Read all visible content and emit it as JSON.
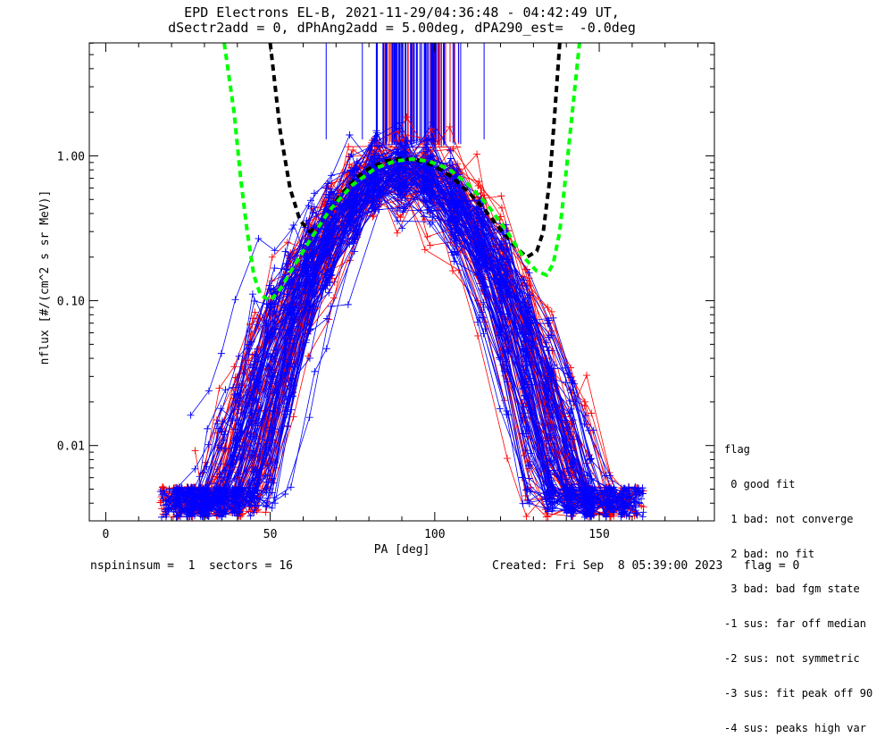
{
  "chart_data": {
    "type": "line",
    "title_line1": "EPD Electrons EL-B, 2021-11-29/04:36:48 - 04:42:49 UT,",
    "title_line2": "dSectr2add = 0, dPhAng2add = 5.00deg, dPA290_est=  -0.0deg",
    "xlabel": "PA [deg]",
    "ylabel": "nflux [#/(cm^2 s sr MeV)]",
    "xlim": [
      -5,
      185
    ],
    "ylim_log10": [
      -2.52,
      0.78
    ],
    "y_scale": "log",
    "x_ticks": [
      0,
      50,
      100,
      150
    ],
    "y_ticks": [
      {
        "value": 0.01,
        "label": "0.01"
      },
      {
        "value": 0.1,
        "label": "0.10"
      },
      {
        "value": 1.0,
        "label": "1.00"
      }
    ],
    "series_colors": {
      "red": "#ff0000",
      "blue": "#0000ff",
      "fit_black": "#000000",
      "fit_green": "#00ff00"
    },
    "fit_green": {
      "x": [
        36,
        39,
        41,
        43,
        45,
        47,
        50,
        53,
        57,
        62,
        68,
        75,
        82,
        88,
        93,
        98,
        104,
        110,
        116,
        122,
        127,
        131,
        134,
        136,
        138,
        140,
        142,
        144
      ],
      "y": [
        6.0,
        2.0,
        0.7,
        0.3,
        0.15,
        0.11,
        0.1,
        0.12,
        0.17,
        0.26,
        0.42,
        0.63,
        0.82,
        0.92,
        0.95,
        0.92,
        0.82,
        0.64,
        0.46,
        0.3,
        0.2,
        0.16,
        0.15,
        0.18,
        0.3,
        0.8,
        2.2,
        6.0
      ]
    },
    "fit_black": {
      "x": [
        50,
        53,
        56,
        59,
        62,
        65,
        68,
        72,
        76,
        80,
        85,
        90,
        95,
        100,
        105,
        110,
        115,
        120,
        125,
        128,
        131,
        133,
        135,
        136.5,
        138
      ],
      "y": [
        6.0,
        1.5,
        0.6,
        0.36,
        0.3,
        0.33,
        0.42,
        0.56,
        0.7,
        0.82,
        0.92,
        0.96,
        0.93,
        0.85,
        0.72,
        0.57,
        0.43,
        0.31,
        0.23,
        0.2,
        0.22,
        0.3,
        0.7,
        2.0,
        6.0
      ]
    },
    "saturated_spikes": {
      "x_range": [
        82,
        108
      ],
      "base_value": 1.15,
      "extra_blue_x": [
        67,
        78,
        115
      ]
    },
    "bands": {
      "pitch_angle_centers": [
        18,
        22,
        26,
        30,
        35,
        40,
        45,
        50,
        56,
        62,
        68,
        75,
        82,
        90,
        98,
        106,
        114,
        121,
        128,
        135,
        141,
        147,
        153,
        158,
        162
      ],
      "profile_peak": 0.85,
      "profile_width_deg": 33,
      "line_count_per_color": 90
    }
  },
  "legend": {
    "title": "flag",
    "items": [
      " 0 good fit",
      " 1 bad: not converge",
      " 2 bad: no fit",
      " 3 bad: bad fgm state",
      "-1 sus: far off median",
      "-2 sus: not symmetric",
      "-3 sus: fit peak off 90",
      "-4 sus: peaks high var"
    ]
  },
  "footer": {
    "left": "nspininsum =  1  sectors = 16",
    "right": "Created: Fri Sep  8 05:39:00 2023   flag = 0"
  }
}
